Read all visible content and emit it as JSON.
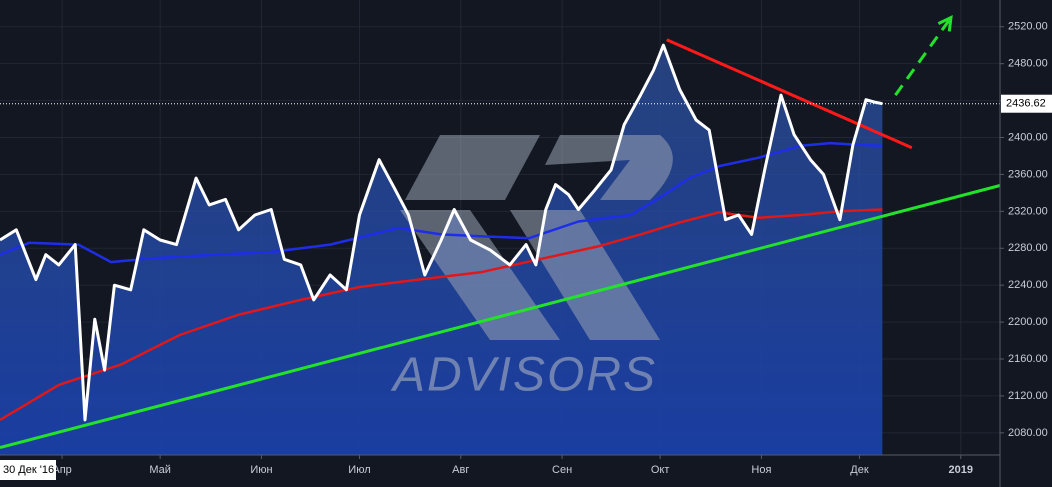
{
  "chart_data": {
    "type": "line",
    "watermark": "ADVISORS",
    "crosshair_label": "30 Дек '16",
    "background": "#131722",
    "grid": true,
    "xlim": [
      72,
      378
    ],
    "ylim": [
      2056,
      2549
    ],
    "xticks": [
      {
        "value": 91,
        "label": "Апр"
      },
      {
        "value": 121,
        "label": "Май"
      },
      {
        "value": 152,
        "label": "Июн"
      },
      {
        "value": 182,
        "label": "Июл"
      },
      {
        "value": 213,
        "label": "Авг"
      },
      {
        "value": 244,
        "label": "Сен"
      },
      {
        "value": 274,
        "label": "Окт"
      },
      {
        "value": 305,
        "label": "Ноя"
      },
      {
        "value": 335,
        "label": "Дек"
      },
      {
        "value": 366,
        "label": "2019"
      }
    ],
    "yticks": [
      {
        "value": 2080,
        "label": "2080.00"
      },
      {
        "value": 2120,
        "label": "2120.00"
      },
      {
        "value": 2160,
        "label": "2160.00"
      },
      {
        "value": 2200,
        "label": "2200.00"
      },
      {
        "value": 2240,
        "label": "2240.00"
      },
      {
        "value": 2280,
        "label": "2280.00"
      },
      {
        "value": 2320,
        "label": "2320.00"
      },
      {
        "value": 2360,
        "label": "2360.00"
      },
      {
        "value": 2400,
        "label": "2400.00"
      },
      {
        "value": 2440,
        "label": "2440.00"
      },
      {
        "value": 2480,
        "label": "2480.00"
      },
      {
        "value": 2520,
        "label": "2520.00"
      }
    ],
    "series": [
      {
        "color": "#ffffff",
        "area": true,
        "x": [
          72,
          77,
          83,
          86,
          90,
          95,
          98,
          101,
          104,
          107,
          112,
          116,
          121,
          126,
          132,
          136,
          141,
          145,
          150,
          155,
          159,
          164,
          168,
          173,
          178,
          182,
          188,
          193,
          197,
          202,
          207,
          211,
          216,
          222,
          228,
          233,
          236,
          239,
          242,
          246,
          249,
          254,
          259,
          263,
          268,
          272,
          275,
          280,
          285,
          289,
          294,
          298,
          302,
          306,
          311,
          315,
          320,
          324,
          329,
          333,
          337,
          340,
          342
        ],
        "values": [
          2289,
          2300,
          2246,
          2273,
          2262,
          2284,
          2094,
          2203,
          2148,
          2240,
          2235,
          2300,
          2289,
          2284,
          2356,
          2327,
          2333,
          2300,
          2316,
          2322,
          2268,
          2262,
          2224,
          2251,
          2235,
          2316,
          2376,
          2343,
          2316,
          2251,
          2289,
          2322,
          2289,
          2278,
          2262,
          2284,
          2262,
          2322,
          2349,
          2338,
          2322,
          2343,
          2365,
          2414,
          2446,
          2473,
          2500,
          2452,
          2419,
          2408,
          2311,
          2316,
          2295,
          2365,
          2446,
          2403,
          2376,
          2360,
          2311,
          2392,
          2441,
          2438,
          2436.62
        ]
      },
      {
        "color": "#1e2ee8",
        "x": [
          72,
          81,
          96,
          106,
          118,
          133,
          155,
          173,
          194,
          207,
          219,
          234,
          249,
          265,
          274,
          283,
          292,
          304,
          317,
          326,
          335,
          342
        ],
        "values": [
          2273,
          2286,
          2284,
          2265,
          2269,
          2272,
          2276,
          2284,
          2302,
          2295,
          2293,
          2291,
          2309,
          2316,
          2335,
          2356,
          2369,
          2378,
          2391,
          2394,
          2392,
          2391
        ]
      },
      {
        "color": "#e01818",
        "x": [
          72,
          90,
          109,
          127,
          145,
          164,
          182,
          200,
          219,
          237,
          255,
          268,
          280,
          292,
          304,
          317,
          329,
          342
        ],
        "values": [
          2094,
          2132,
          2154,
          2186,
          2208,
          2224,
          2238,
          2246,
          2254,
          2268,
          2282,
          2295,
          2308,
          2319,
          2313,
          2316,
          2320,
          2322
        ]
      }
    ],
    "trend_lines": [
      {
        "color": "#ff1a1a",
        "x": [
          276,
          351
        ],
        "values": [
          2506,
          2389
        ]
      },
      {
        "color": "#22e22a",
        "x": [
          72,
          378
        ],
        "values": [
          2064,
          2348
        ]
      },
      {
        "color": "#22e22a",
        "dashed": true,
        "arrow": true,
        "x": [
          346,
          363
        ],
        "values": [
          2446,
          2530
        ]
      }
    ]
  }
}
